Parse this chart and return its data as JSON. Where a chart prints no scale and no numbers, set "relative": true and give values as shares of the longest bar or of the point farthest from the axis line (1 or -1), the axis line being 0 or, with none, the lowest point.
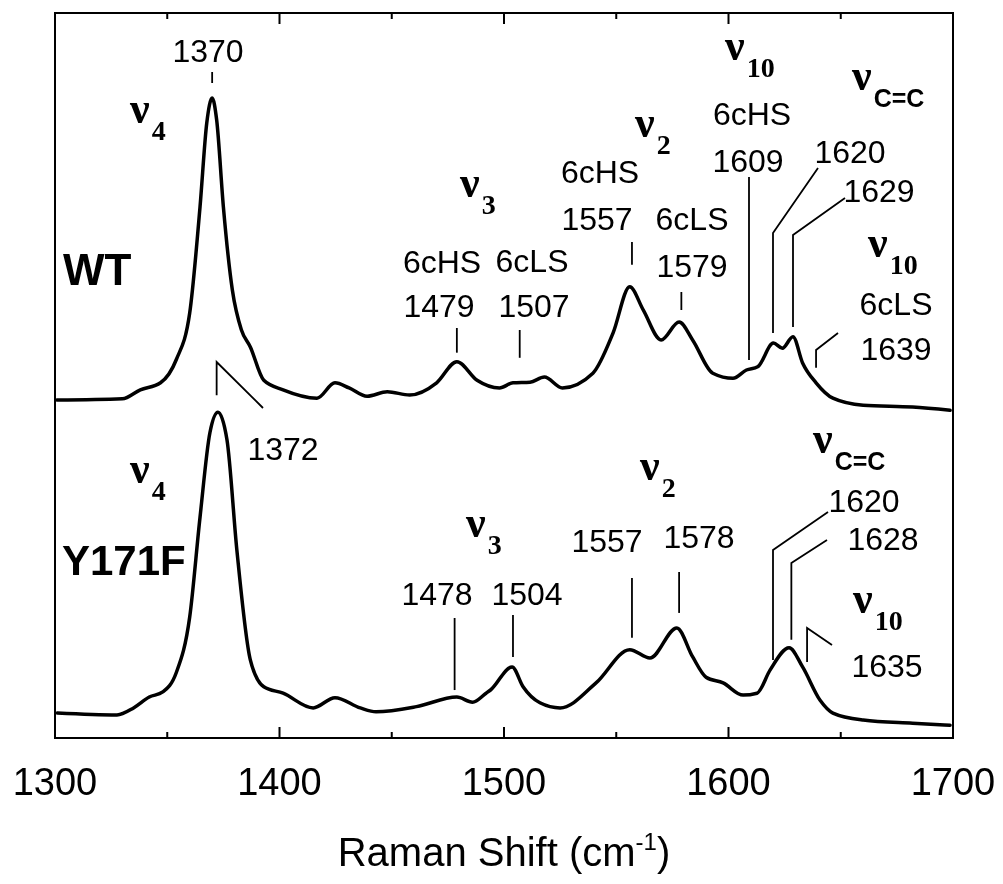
{
  "chart_data": {
    "type": "line",
    "relative": true,
    "xlabel": "Raman Shift (cm$^{-1}$)",
    "xlim": [
      1300,
      1700
    ],
    "xticks": [
      1300,
      {
        "value": 1350,
        "label": null
      },
      1400,
      {
        "value": 1450,
        "label": null
      },
      1500,
      {
        "value": 1550,
        "label": null
      },
      1600,
      {
        "value": 1650,
        "label": null
      },
      1700
    ],
    "series": [
      {
        "name": "WT",
        "color": "#000000",
        "x": [
          1300.8,
          1330,
          1338,
          1347,
          1354,
          1360,
          1364.6,
          1367.6,
          1370,
          1372,
          1375,
          1379,
          1383,
          1387,
          1393,
          1401.6,
          1416.7,
          1424.7,
          1431,
          1439,
          1448,
          1458,
          1470,
          1479,
          1488,
          1498,
          1504,
          1511.6,
          1518,
          1526,
          1539.6,
          1548.6,
          1556,
          1562,
          1570,
          1578,
          1584,
          1593,
          1602,
          1608,
          1613,
          1620,
          1624,
          1628.7,
          1633,
          1639,
          1646.5,
          1660,
          1682,
          1698.7
        ],
        "values": [
          0.528,
          0.53,
          0.544,
          0.555,
          0.591,
          0.664,
          0.83,
          0.961,
          1.0,
          0.966,
          0.83,
          0.7,
          0.638,
          0.611,
          0.559,
          0.544,
          0.531,
          0.555,
          0.547,
          0.534,
          0.541,
          0.536,
          0.555,
          0.588,
          0.559,
          0.547,
          0.555,
          0.556,
          0.564,
          0.547,
          0.57,
          0.633,
          0.705,
          0.669,
          0.622,
          0.65,
          0.622,
          0.57,
          0.562,
          0.575,
          0.58,
          0.617,
          0.609,
          0.627,
          0.586,
          0.555,
          0.531,
          0.52,
          0.517,
          0.512
        ]
      },
      {
        "name": "Y171F",
        "color": "#000000",
        "x": [
          1301,
          1327.6,
          1335,
          1342,
          1348,
          1354,
          1360,
          1364.6,
          1369,
          1372.6,
          1376.6,
          1381,
          1387,
          1393,
          1401.6,
          1415,
          1424.7,
          1436,
          1443,
          1461,
          1479,
          1486,
          1492,
          1494,
          1503.6,
          1508.5,
          1516,
          1525,
          1541,
          1556,
          1565,
          1577,
          1584,
          1590,
          1597.6,
          1606.5,
          1612.7,
          1618.5,
          1627,
          1633,
          1640.8,
          1646.5,
          1660,
          1682,
          1698.7
        ],
        "values": [
          0.039,
          0.036,
          0.047,
          0.064,
          0.072,
          0.102,
          0.189,
          0.345,
          0.477,
          0.509,
          0.466,
          0.294,
          0.122,
          0.08,
          0.07,
          0.047,
          0.063,
          0.047,
          0.041,
          0.049,
          0.064,
          0.056,
          0.07,
          0.075,
          0.111,
          0.08,
          0.055,
          0.047,
          0.086,
          0.138,
          0.125,
          0.172,
          0.127,
          0.095,
          0.086,
          0.067,
          0.07,
          0.106,
          0.141,
          0.111,
          0.059,
          0.039,
          0.028,
          0.023,
          0.02
        ]
      }
    ],
    "annotations": [
      "ν$_{4}$",
      {
        "text": "1370",
        "x": 1370,
        "y": 1.0
      },
      "ν$_{3}$",
      "6cHS",
      {
        "text": "1479",
        "x": 1479,
        "y": 0.588
      },
      "6cLS",
      {
        "text": "1507",
        "x": 1507,
        "y": 0.555
      },
      "ν$_{2}$",
      "6cHS",
      {
        "text": "1557",
        "x": 1557,
        "y": 0.705
      },
      "6cLS",
      {
        "text": "1579",
        "x": 1579,
        "y": 0.65
      },
      "ν$_{10}$",
      "6cHS",
      "1609",
      "ν$_{C=C}$",
      "1620",
      "1629",
      "ν$_{10}$",
      "6cLS",
      {
        "text": "1639",
        "x": 1639,
        "y": 0.555
      },
      "ν$_{4}$",
      {
        "text": "1372",
        "x": 1372,
        "y": 0.509
      },
      "ν$_{3}$",
      {
        "text": "1478",
        "x": 1478,
        "y": 0.064
      },
      {
        "text": "1504",
        "x": 1504,
        "y": 0.111
      },
      "ν$_{2}$",
      {
        "text": "1557",
        "x": 1557,
        "y": 0.138
      },
      {
        "text": "1578",
        "x": 1578,
        "y": 0.172
      },
      "ν$_{C=C}$",
      "1620",
      {
        "text": "1628",
        "x": 1628,
        "y": 0.141
      },
      "ν$_{10}$",
      {
        "text": "1635",
        "x": 1635,
        "y": 0.111
      }
    ]
  }
}
